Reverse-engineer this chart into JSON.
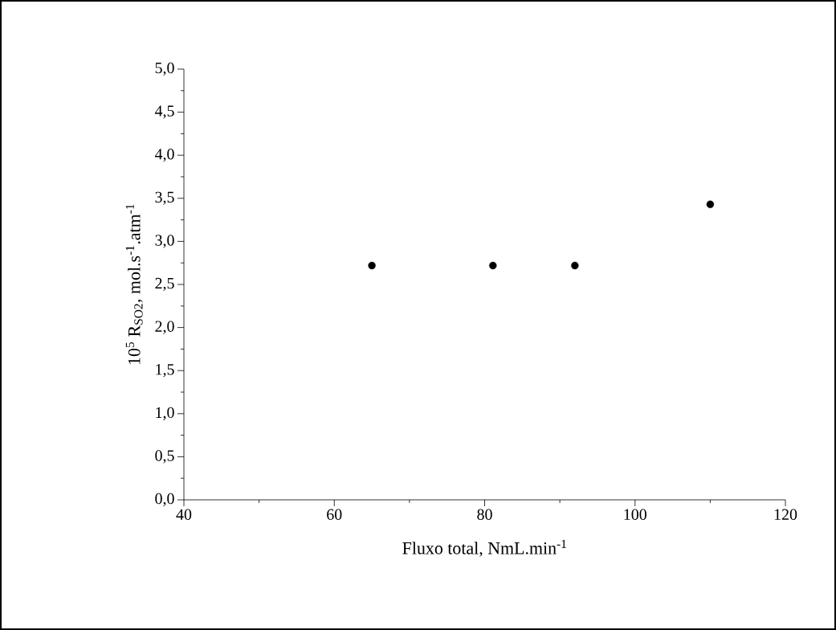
{
  "chart_data": {
    "type": "scatter",
    "xlabel": "Fluxo total, NmL.min$^{-1}$",
    "ylabel": "10$^{5}$ R$_{SO2}$, mol.s$^{-1}$.atm$^{-1}$",
    "x": [
      65,
      81.1,
      92,
      110
    ],
    "values": [
      2.72,
      2.72,
      2.72,
      3.43
    ],
    "color": "#000000",
    "marker": "circle",
    "xlim": [
      40,
      120
    ],
    "ylim": [
      0,
      5
    ],
    "xticks": [
      40,
      {
        "value": 50,
        "label": null
      },
      60,
      {
        "value": 70,
        "label": null
      },
      80,
      {
        "value": 90,
        "label": null
      },
      100,
      {
        "value": 110,
        "label": null
      },
      120
    ],
    "yticks": [
      {
        "value": 0,
        "label": "0,0"
      },
      {
        "value": 0.25,
        "label": null
      },
      {
        "value": 0.5,
        "label": "0,5"
      },
      {
        "value": 0.75,
        "label": null
      },
      {
        "value": 1,
        "label": "1,0"
      },
      {
        "value": 1.25,
        "label": null
      },
      {
        "value": 1.5,
        "label": "1,5"
      },
      {
        "value": 1.75,
        "label": null
      },
      {
        "value": 2,
        "label": "2,0"
      },
      {
        "value": 2.25,
        "label": null
      },
      {
        "value": 2.5,
        "label": "2,5"
      },
      {
        "value": 2.75,
        "label": null
      },
      {
        "value": 3,
        "label": "3,0"
      },
      {
        "value": 3.25,
        "label": null
      },
      {
        "value": 3.5,
        "label": "3,5"
      },
      {
        "value": 3.75,
        "label": null
      },
      {
        "value": 4,
        "label": "4,0"
      },
      {
        "value": 4.25,
        "label": null
      },
      {
        "value": 4.5,
        "label": "4,5"
      },
      {
        "value": 4.75,
        "label": null
      },
      {
        "value": 5,
        "label": "5,0"
      }
    ]
  }
}
